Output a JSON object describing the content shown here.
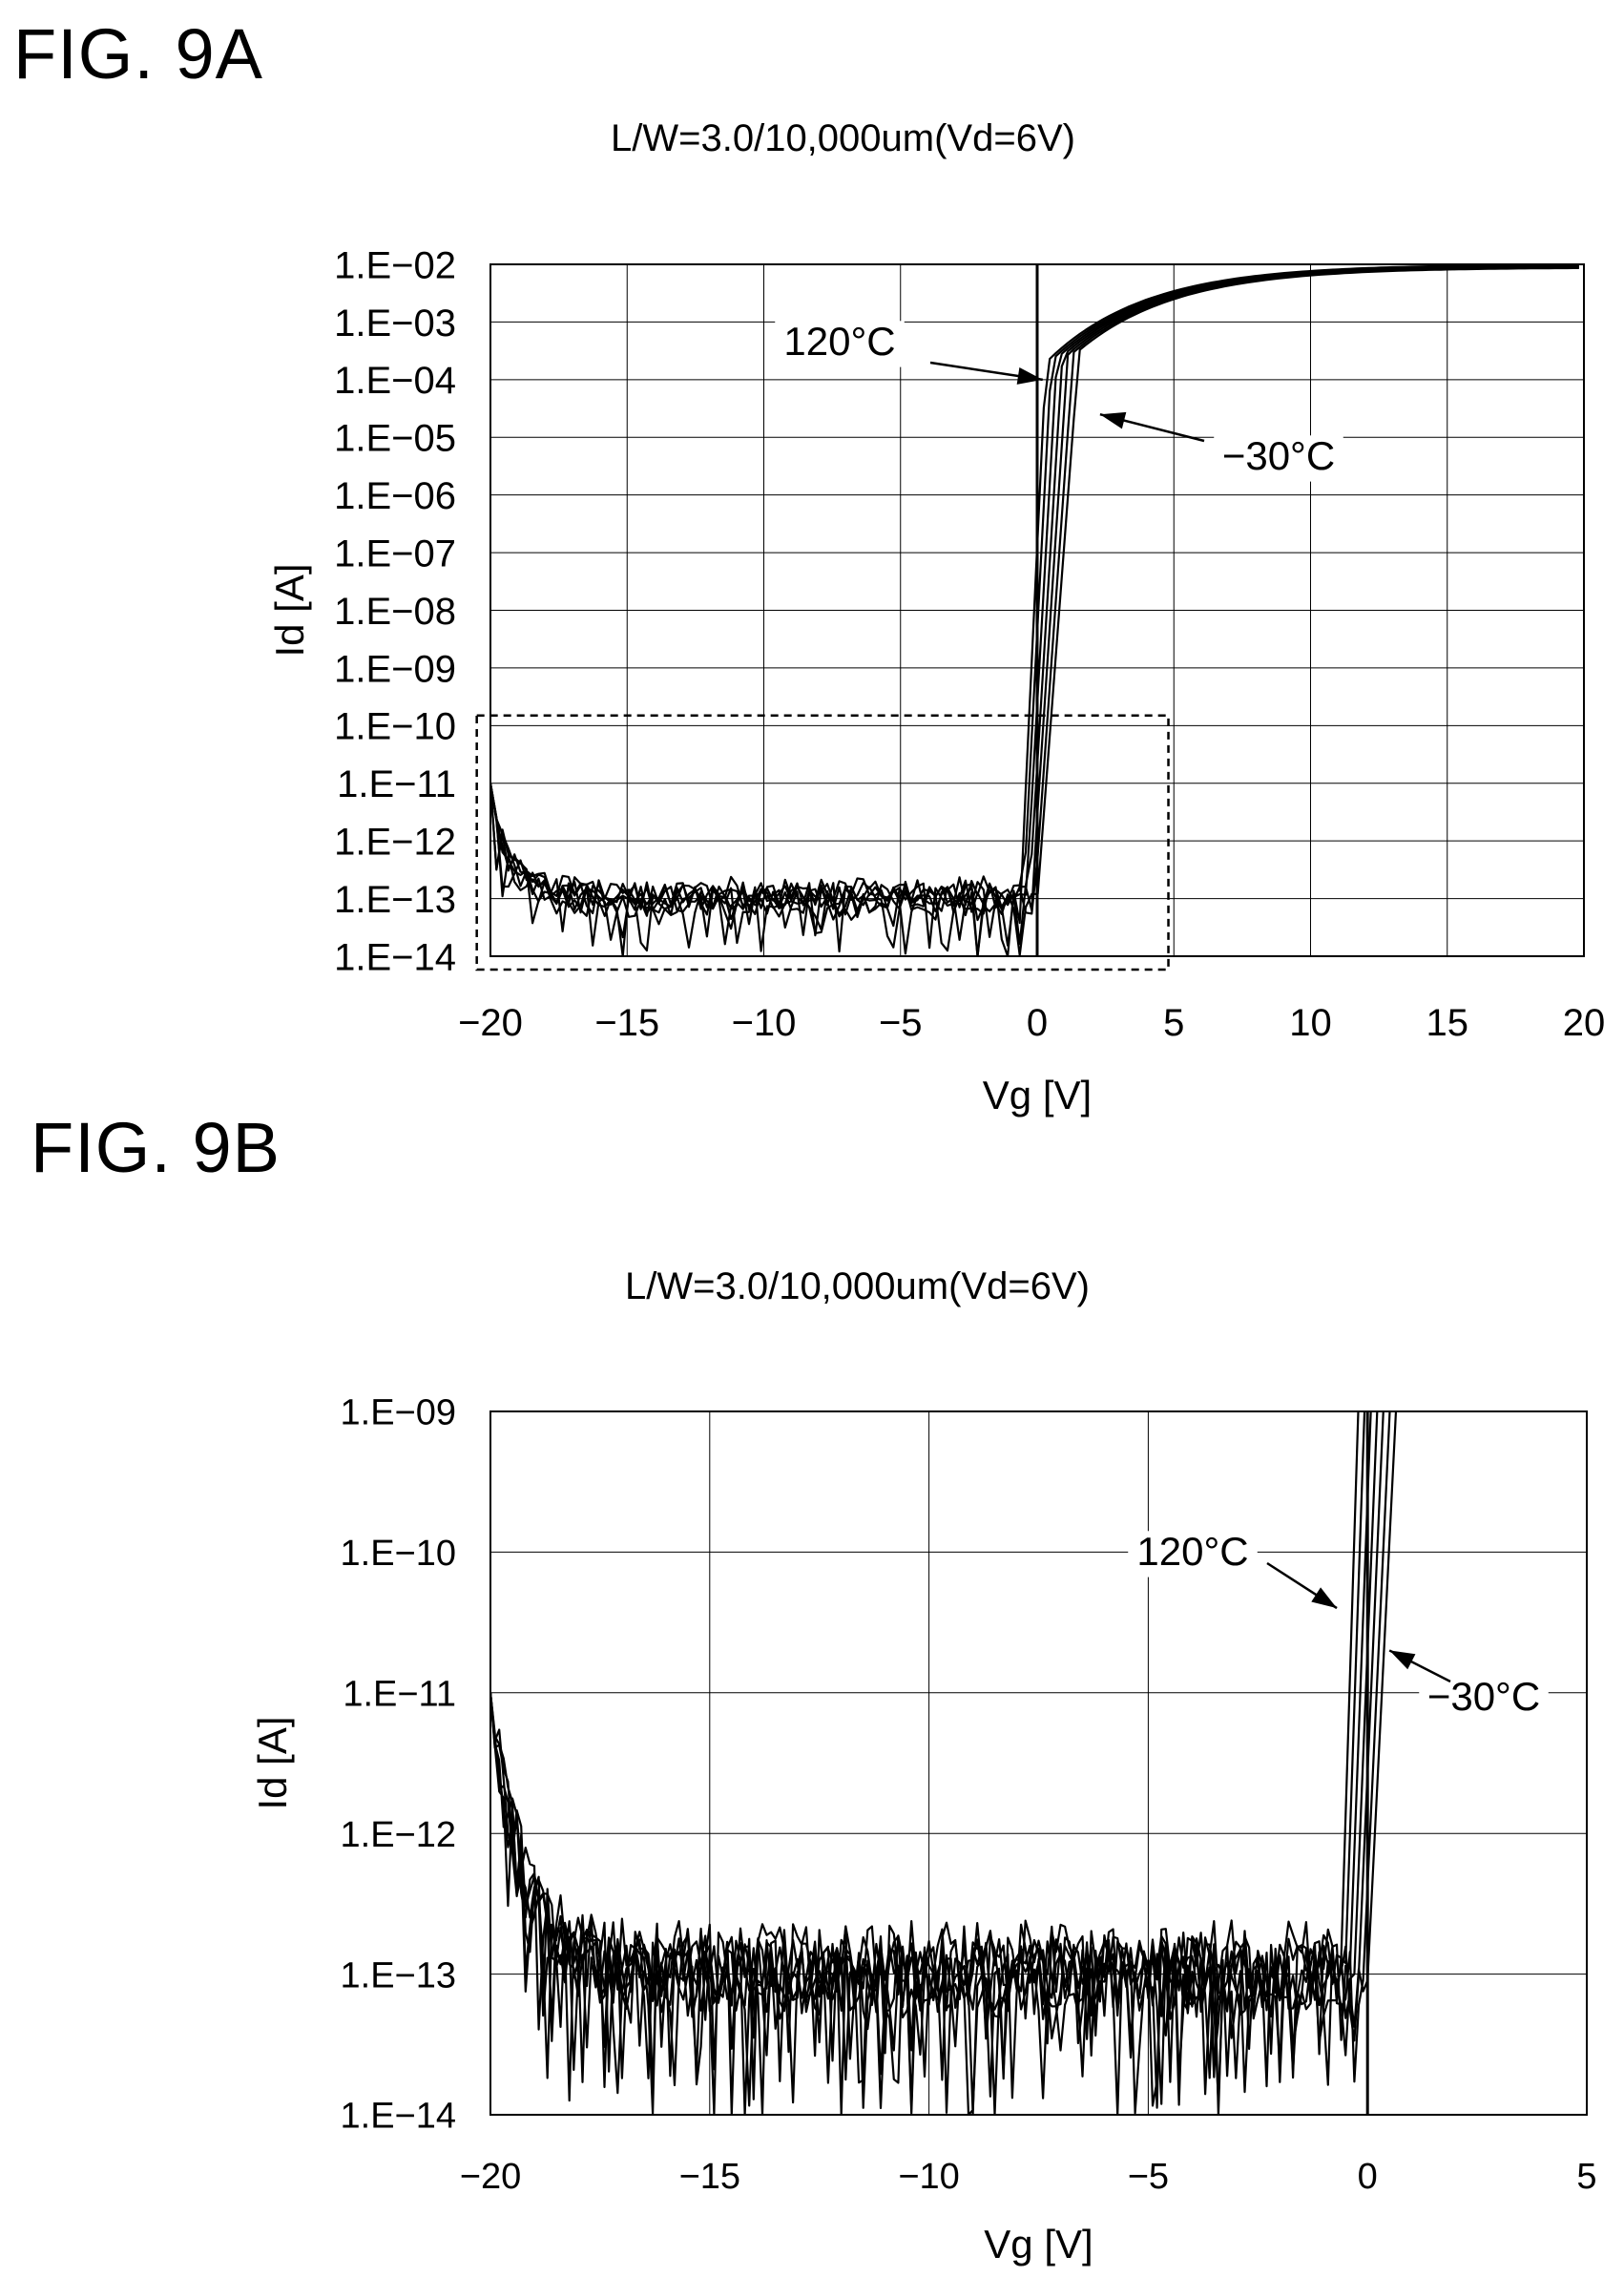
{
  "figures": [
    {
      "label": "FIG. 9A",
      "title": "L/W=3.0/10,000um(Vd=6V)"
    },
    {
      "label": "FIG. 9B",
      "title": "L/W=3.0/10,000um(Vd=6V)"
    }
  ],
  "chart_data": [
    {
      "type": "line",
      "title": "L/W=3.0/10,000um(Vd=6V)",
      "xlabel": "Vg [V]",
      "ylabel": "Id [A]",
      "xlim": [
        -20,
        20
      ],
      "ylim": [
        1e-14,
        0.01
      ],
      "yscale": "log",
      "grid": true,
      "xticks": [
        -20,
        -15,
        -10,
        -5,
        0,
        5,
        10,
        15,
        20
      ],
      "xtick_labels": [
        "−20",
        "−15",
        "−10",
        "−5",
        "0",
        "5",
        "10",
        "15",
        "20"
      ],
      "ytick_labels": [
        "1.E−02",
        "1.E−03",
        "1.E−04",
        "1.E−05",
        "1.E−06",
        "1.E−07",
        "1.E−08",
        "1.E−09",
        "1.E−10",
        "1.E−11",
        "1.E−12",
        "1.E−13",
        "1.E−14"
      ],
      "annotations": [
        {
          "text": "120°C",
          "points_to": {
            "x": 0.2,
            "y": 0.0001
          }
        },
        {
          "text": "−30°C",
          "points_to": {
            "x": 2.3,
            "y": 2.5e-05
          }
        }
      ],
      "highlight_box": {
        "xlim": [
          -20.5,
          4.8
        ],
        "ylim": [
          1e-14,
          1.5e-10
        ],
        "style": "dashed"
      },
      "series": [
        {
          "temperature_rank": 0,
          "off_current": 1.3e-13,
          "vth": -0.6,
          "ss": 0.1,
          "ion": 0.01
        },
        {
          "temperature_rank": 1,
          "off_current": 1.2e-13,
          "vth": -0.5,
          "ss": 0.11,
          "ion": 0.0098
        },
        {
          "temperature_rank": 2,
          "off_current": 1.1e-13,
          "vth": -0.4,
          "ss": 0.12,
          "ion": 0.0096
        },
        {
          "temperature_rank": 3,
          "off_current": 1e-13,
          "vth": -0.3,
          "ss": 0.13,
          "ion": 0.0094
        },
        {
          "temperature_rank": 4,
          "off_current": 1e-13,
          "vth": -0.2,
          "ss": 0.14,
          "ion": 0.0092
        },
        {
          "temperature_rank": 5,
          "off_current": 9e-14,
          "vth": -0.1,
          "ss": 0.15,
          "ion": 0.009
        },
        {
          "temperature_rank": 6,
          "off_current": 9e-14,
          "vth": 0.0,
          "ss": 0.16,
          "ion": 0.0088
        }
      ]
    },
    {
      "type": "line",
      "title": "L/W=3.0/10,000um(Vd=6V)",
      "xlabel": "Vg [V]",
      "ylabel": "Id [A]",
      "xlim": [
        -20,
        5
      ],
      "ylim": [
        1e-14,
        1e-09
      ],
      "yscale": "log",
      "grid": true,
      "xticks": [
        -20,
        -15,
        -10,
        -5,
        0,
        5
      ],
      "xtick_labels": [
        "−20",
        "−15",
        "−10",
        "−5",
        "0",
        "5"
      ],
      "ytick_labels": [
        "1.E−09",
        "1.E−10",
        "1.E−11",
        "1.E−12",
        "1.E−13",
        "1.E−14"
      ],
      "annotations": [
        {
          "text": "120°C",
          "points_to": {
            "x": -0.7,
            "y": 4e-11
          }
        },
        {
          "text": "−30°C",
          "points_to": {
            "x": 0.5,
            "y": 2e-11
          }
        }
      ]
    }
  ]
}
